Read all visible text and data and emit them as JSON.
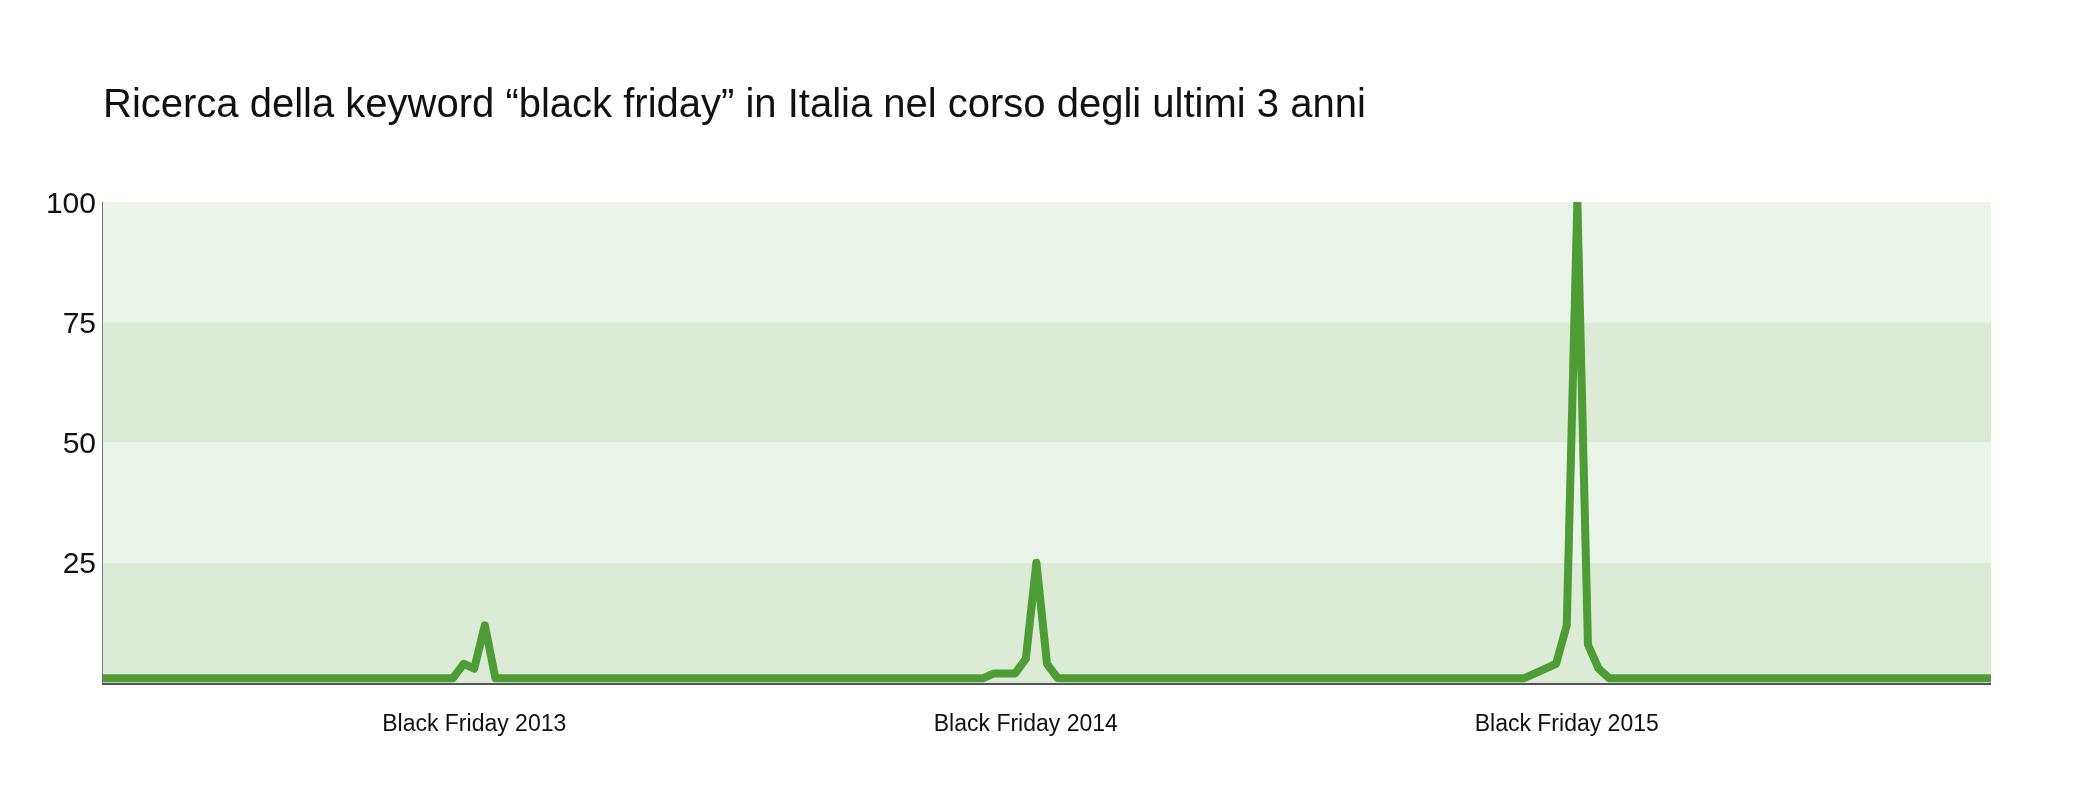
{
  "chart_data": {
    "type": "line",
    "title": "Ricerca della keyword “black friday” in Italia nel corso degli ultimi 3 anni",
    "categories": [
      null,
      null,
      null,
      null,
      null,
      null,
      null,
      null,
      null,
      null,
      null,
      null,
      null,
      null,
      null,
      null,
      null,
      null,
      null,
      null,
      null,
      null,
      null,
      null,
      null,
      null,
      null,
      null,
      null,
      null,
      null,
      null,
      null,
      null,
      null,
      "Black Friday 2013",
      null,
      null,
      null,
      null,
      null,
      null,
      null,
      null,
      null,
      null,
      null,
      null,
      null,
      null,
      null,
      null,
      null,
      null,
      null,
      null,
      null,
      null,
      null,
      null,
      null,
      null,
      null,
      null,
      null,
      null,
      null,
      null,
      null,
      null,
      null,
      null,
      null,
      null,
      null,
      null,
      null,
      null,
      null,
      null,
      null,
      null,
      null,
      null,
      null,
      null,
      null,
      "Black Friday 2014",
      null,
      null,
      null,
      null,
      null,
      null,
      null,
      null,
      null,
      null,
      null,
      null,
      null,
      null,
      null,
      null,
      null,
      null,
      null,
      null,
      null,
      null,
      null,
      null,
      null,
      null,
      null,
      null,
      null,
      null,
      null,
      null,
      null,
      null,
      null,
      null,
      null,
      null,
      null,
      null,
      null,
      null,
      null,
      null,
      null,
      null,
      null,
      null,
      null,
      null,
      "Black Friday 2015",
      null,
      null,
      null,
      null,
      null,
      null,
      null,
      null,
      null,
      null,
      null,
      null,
      null,
      null,
      null,
      null,
      null,
      null,
      null,
      null,
      null,
      null,
      null,
      null,
      null,
      null,
      null,
      null,
      null,
      null,
      null,
      null,
      null,
      null,
      null,
      null,
      null,
      null,
      null,
      null
    ],
    "series": [
      {
        "color": "#4e9c35",
        "values": [
          1,
          1,
          1,
          1,
          1,
          1,
          1,
          1,
          1,
          1,
          1,
          1,
          1,
          1,
          1,
          1,
          1,
          1,
          1,
          1,
          1,
          1,
          1,
          1,
          1,
          1,
          1,
          1,
          1,
          1,
          1,
          1,
          1,
          1,
          4,
          3,
          12,
          1,
          1,
          1,
          1,
          1,
          1,
          1,
          1,
          1,
          1,
          1,
          1,
          1,
          1,
          1,
          1,
          1,
          1,
          1,
          1,
          1,
          1,
          1,
          1,
          1,
          1,
          1,
          1,
          1,
          1,
          1,
          1,
          1,
          1,
          1,
          1,
          1,
          1,
          1,
          1,
          1,
          1,
          1,
          1,
          1,
          1,
          1,
          2,
          2,
          2,
          5,
          25,
          4,
          1,
          1,
          1,
          1,
          1,
          1,
          1,
          1,
          1,
          1,
          1,
          1,
          1,
          1,
          1,
          1,
          1,
          1,
          1,
          1,
          1,
          1,
          1,
          1,
          1,
          1,
          1,
          1,
          1,
          1,
          1,
          1,
          1,
          1,
          1,
          1,
          1,
          1,
          1,
          1,
          1,
          1,
          1,
          1,
          1,
          2,
          3,
          4,
          12,
          100,
          8,
          3,
          1,
          1,
          1,
          1,
          1,
          1,
          1,
          1,
          1,
          1,
          1,
          1,
          1,
          1,
          1,
          1,
          1,
          1,
          1,
          1,
          1,
          1,
          1,
          1,
          1,
          1,
          1,
          1,
          1,
          1,
          1,
          1,
          1,
          1,
          1,
          1,
          1
        ]
      }
    ],
    "ylim": [
      0,
      100
    ],
    "yticks": [
      25,
      50,
      75,
      100
    ],
    "marker": "none",
    "line_style": "solid"
  }
}
